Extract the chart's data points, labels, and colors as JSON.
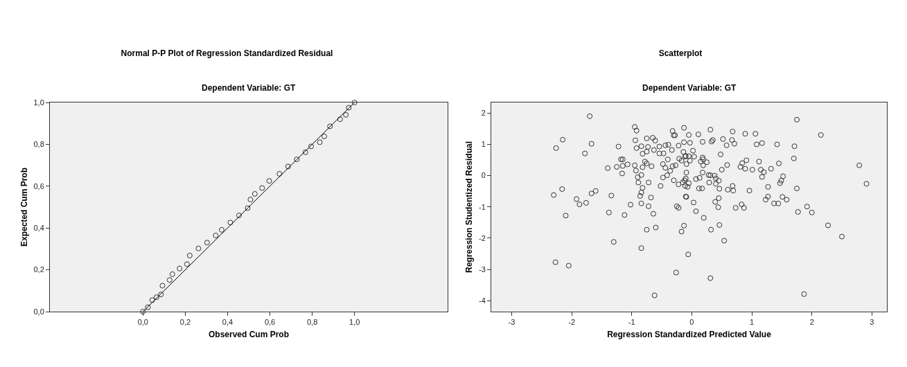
{
  "chart_data": [
    {
      "type": "scatter",
      "title": "Normal P-P Plot of Regression Standardized Residual",
      "subtitle": "Dependent Variable: GT",
      "xlabel": "Observed Cum Prob",
      "ylabel": "Expected Cum Prob",
      "xlim": [
        -0.44,
        1.44
      ],
      "ylim": [
        0,
        1
      ],
      "xticks": [
        {
          "value": 0,
          "label": "0,0"
        },
        {
          "value": 0.2,
          "label": "0,2"
        },
        {
          "value": 0.4,
          "label": "0,4"
        },
        {
          "value": 0.6,
          "label": "0,6"
        },
        {
          "value": 0.8,
          "label": "0,8"
        },
        {
          "value": 1,
          "label": "1,0"
        }
      ],
      "yticks": [
        {
          "value": 0,
          "label": "0,0"
        },
        {
          "value": 0.2,
          "label": "0,2"
        },
        {
          "value": 0.4,
          "label": "0,4"
        },
        {
          "value": 0.6,
          "label": "0,6"
        },
        {
          "value": 0.8,
          "label": "0,8"
        },
        {
          "value": 1,
          "label": "1,0"
        }
      ],
      "series": [
        {
          "marker": "circle",
          "color": "#333333",
          "x": [
            0,
            0.023,
            0.044,
            0.064,
            0.085,
            0.092,
            0.126,
            0.139,
            0.173,
            0.208,
            0.221,
            0.262,
            0.303,
            0.344,
            0.372,
            0.413,
            0.454,
            0.495,
            0.508,
            0.529,
            0.563,
            0.597,
            0.645,
            0.686,
            0.727,
            0.768,
            0.795,
            0.836,
            0.857,
            0.884,
            0.932,
            0.959,
            0.973,
            1
          ],
          "values": [
            0,
            0.021,
            0.055,
            0.069,
            0.082,
            0.124,
            0.151,
            0.179,
            0.206,
            0.227,
            0.268,
            0.302,
            0.33,
            0.364,
            0.391,
            0.426,
            0.46,
            0.495,
            0.536,
            0.563,
            0.591,
            0.625,
            0.659,
            0.694,
            0.728,
            0.762,
            0.79,
            0.81,
            0.838,
            0.886,
            0.92,
            0.941,
            0.975,
            1
          ]
        },
        {
          "type": "line",
          "color": "#000000",
          "x": [
            0,
            1
          ],
          "values": [
            0,
            1
          ]
        }
      ]
    },
    {
      "type": "scatter",
      "title": "Scatterplot",
      "subtitle": "Dependent Variable: GT",
      "xlabel": "Regression Standardized Predicted Value",
      "ylabel": "Regression Studentized Residual",
      "xlim": [
        -3.34,
        3.25
      ],
      "ylim": [
        -4.35,
        2.34
      ],
      "xticks": [
        -3,
        -2,
        -1,
        0,
        1,
        2,
        3
      ],
      "yticks": [
        -4,
        -3,
        -2,
        -1,
        0,
        1,
        2
      ],
      "series": [
        {
          "marker": "circle",
          "color": "#333333",
          "x": [
            -1.7,
            -2.26,
            -2.15,
            -1.67,
            -1.78,
            -2.3,
            -2.16,
            -2.1,
            -1.92,
            -1.87,
            -1.76,
            -1.67,
            -1.6,
            -1.4,
            -1.34,
            -1.38,
            -1.3,
            -1.25,
            -1.22,
            -1.18,
            -1.15,
            -1.16,
            -1.15,
            -1.07,
            -1.12,
            -1.02,
            -0.95,
            -0.92,
            -0.94,
            -0.92,
            -0.84,
            -0.95,
            -0.93,
            -0.9,
            -0.89,
            -0.84,
            -0.82,
            -0.82,
            -0.78,
            -0.75,
            -0.73,
            -0.75,
            -0.65,
            -0.61,
            -0.63,
            -0.75,
            -0.67,
            -0.54,
            -0.54,
            -0.47,
            -0.44,
            -0.39,
            -0.33,
            -0.48,
            -0.44,
            -0.4,
            -0.52,
            -0.48,
            -0.41,
            -0.36,
            -0.3,
            -0.22,
            -0.72,
            -0.82,
            -0.84,
            -0.86,
            -0.68,
            -0.84,
            -0.72,
            -0.64,
            -0.75,
            -0.6,
            -0.84,
            -0.32,
            -0.3,
            -0.28,
            -0.25,
            -0.22,
            -0.22,
            -0.32,
            -0.27,
            -0.21,
            -0.17,
            -0.14,
            -0.13,
            -0.13,
            -0.11,
            -0.15,
            -0.1,
            -0.12,
            -0.1,
            -0.13,
            -0.17,
            -2.27,
            -2.05,
            -0.06,
            -0.26,
            0.31,
            -0.62,
            1.87,
            1.75,
            2.15,
            2.79,
            2.91,
            -0.05,
            0.11,
            0.31,
            0.68,
            0.89,
            1.06,
            0.18,
            0.35,
            0.33,
            0.52,
            0.67,
            0.71,
            0.58,
            1.08,
            1.17,
            1.42,
            1.71,
            1.7,
            -0.03,
            0.02,
            -0.1,
            -0.05,
            0.04,
            0.18,
            0.19,
            0.15,
            0.25,
            0.19,
            -0.09,
            -0.03,
            0.48,
            0.59,
            0.5,
            0.84,
            0.91,
            0.81,
            0.89,
            1.01,
            1.12,
            1.15,
            1.2,
            1.32,
            1.45,
            1.17,
            1.52,
            1.49,
            1.47,
            -0.09,
            0.18,
            0.28,
            0.31,
            0.38,
            0.4,
            0.45,
            0.13,
            0.07,
            -0.05,
            -0.11,
            -0.07,
            0.29,
            0.4,
            0.12,
            0.17,
            0.46,
            0.68,
            0.69,
            0.6,
            0.96,
            1.27,
            1.75,
            -0.09,
            0.03,
            0.45,
            0.39,
            0.44,
            0.07,
            0.2,
            0.73,
            0.83,
            0.87,
            1.23,
            1.27,
            1.37,
            1.44,
            1.51,
            1.58,
            1.77,
            1.92,
            2.0,
            2.27,
            2.5,
            0.32,
            0.46,
            0.54
          ],
          "values": [
            1.9,
            0.88,
            1.15,
            1.02,
            0.71,
            -0.62,
            -0.43,
            -1.28,
            -0.75,
            -0.92,
            -0.87,
            -0.57,
            -0.49,
            0.24,
            -0.64,
            -1.18,
            -2.12,
            0.28,
            0.93,
            0.52,
            0.52,
            0.07,
            0.31,
            0.36,
            -1.26,
            -0.93,
            1.56,
            1.44,
            1.13,
            0.88,
            0.94,
            0.33,
            0.16,
            -0.05,
            -0.22,
            0.02,
            0.7,
            0.27,
            0.45,
            0.77,
            0.92,
            1.19,
            1.21,
            1.12,
            0.82,
            0.39,
            0.3,
            0.93,
            0.71,
            0.71,
            0.97,
            0.99,
            0.82,
            0.37,
            0.25,
            0.52,
            -0.33,
            -0.06,
            0.01,
            0.15,
            -0.15,
            -0.28,
            -0.22,
            -0.39,
            -0.54,
            -0.65,
            -0.7,
            -0.89,
            -0.98,
            -1.22,
            -1.73,
            -1.66,
            -2.32,
            1.43,
            1.29,
            1.29,
            -0.98,
            -1.03,
            0.96,
            0.3,
            0.33,
            0.54,
            0.48,
            0.76,
            1.53,
            1.07,
            0.61,
            -0.22,
            -0.09,
            -0.15,
            -0.67,
            -1.6,
            -1.79,
            -2.77,
            -2.88,
            -2.52,
            -3.1,
            -3.28,
            -3.83,
            -3.79,
            1.79,
            1.3,
            0.33,
            -0.26,
            1.3,
            1.32,
            1.47,
            1.41,
            1.34,
            1.34,
            1.08,
            1.14,
            1.09,
            1.17,
            1.14,
            1.02,
            0.97,
            1.0,
            1.04,
            1.0,
            0.94,
            0.55,
            1.05,
            0.8,
            0.63,
            0.62,
            0.61,
            0.58,
            0.52,
            0.45,
            0.43,
            0.33,
            0.37,
            0.48,
            0.68,
            0.34,
            0.19,
            0.4,
            0.49,
            0.28,
            0.22,
            0.19,
            0.45,
            0.19,
            0.11,
            0.22,
            0.39,
            -0.04,
            -0.02,
            -0.16,
            -0.24,
            0.1,
            0.1,
            0.02,
            0.01,
            0.0,
            -0.09,
            -0.16,
            -0.07,
            -0.11,
            -0.24,
            -0.33,
            -0.36,
            -0.22,
            -0.26,
            -0.41,
            -0.41,
            -0.42,
            -0.33,
            -0.48,
            -0.45,
            -0.48,
            -0.36,
            -0.41,
            -0.68,
            -0.86,
            -0.72,
            -0.84,
            -1.01,
            -1.14,
            -1.35,
            -1.03,
            -0.92,
            -1.03,
            -0.77,
            -0.67,
            -0.89,
            -0.89,
            -0.68,
            -0.77,
            -1.16,
            -0.99,
            -1.18,
            -1.59,
            -1.95,
            -1.73,
            -1.58,
            -2.08
          ]
        }
      ]
    }
  ]
}
